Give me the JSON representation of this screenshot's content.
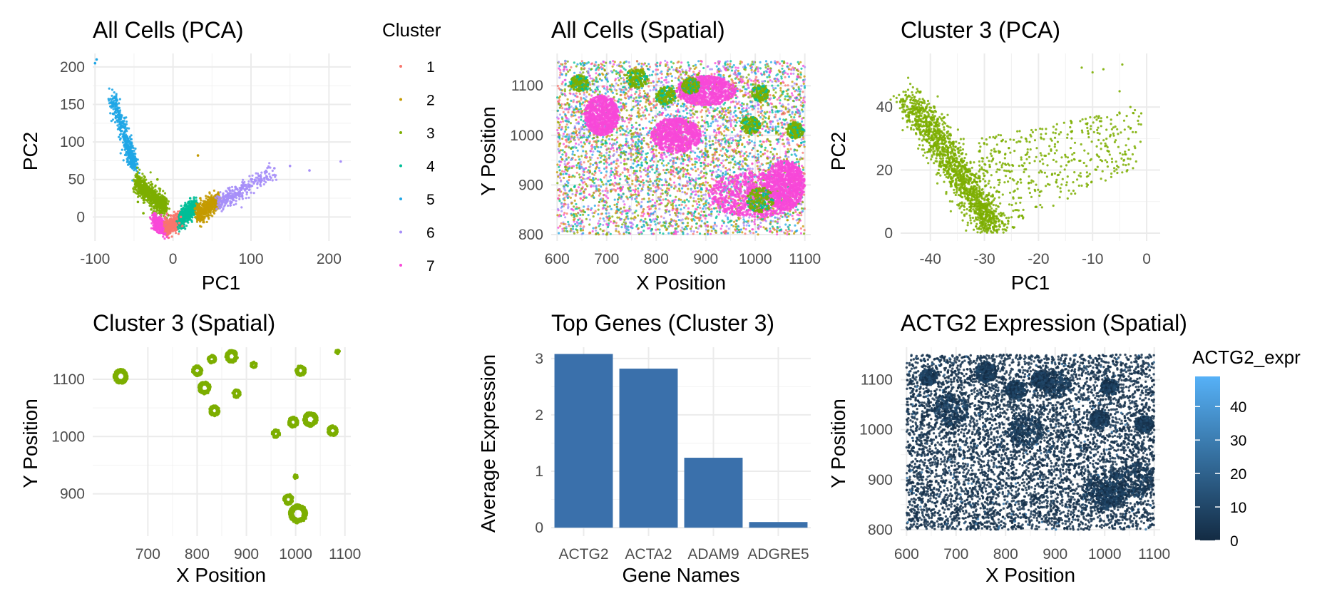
{
  "chart_data": [
    {
      "id": "p1",
      "type": "scatter",
      "title": "All Cells (PCA)",
      "xlabel": "PC1",
      "ylabel": "PC2",
      "xlim": [
        -103,
        228
      ],
      "ylim": [
        -32,
        218
      ],
      "xticks": [
        -100,
        0,
        100,
        200
      ],
      "yticks": [
        0,
        50,
        100,
        150,
        200
      ],
      "grid": true,
      "legend": {
        "title": "Cluster",
        "position": "right",
        "entries": [
          {
            "label": "1",
            "color": "#F8766D"
          },
          {
            "label": "2",
            "color": "#C49A00"
          },
          {
            "label": "3",
            "color": "#7CAE00"
          },
          {
            "label": "4",
            "color": "#00BE97"
          },
          {
            "label": "5",
            "color": "#1FA6E6"
          },
          {
            "label": "6",
            "color": "#A68EF8"
          },
          {
            "label": "7",
            "color": "#F848D8"
          }
        ]
      },
      "series": [
        {
          "name": "1",
          "color": "#F8766D",
          "points": [
            [
              -8,
              -5
            ],
            [
              0,
              -10
            ],
            [
              5,
              -2
            ],
            [
              -3,
              2
            ],
            [
              8,
              -8
            ],
            [
              12,
              -12
            ],
            [
              -5,
              -15
            ],
            [
              3,
              -18
            ],
            [
              10,
              0
            ],
            [
              -10,
              0
            ]
          ]
        },
        {
          "name": "2",
          "color": "#C49A00",
          "points": [
            [
              30,
              5
            ],
            [
              40,
              10
            ],
            [
              45,
              15
            ],
            [
              50,
              20
            ],
            [
              55,
              22
            ],
            [
              35,
              25
            ],
            [
              32,
              82
            ],
            [
              42,
              20
            ],
            [
              38,
              0
            ],
            [
              48,
              8
            ]
          ]
        },
        {
          "name": "3",
          "color": "#7CAE00",
          "points": [
            [
              -45,
              20
            ],
            [
              -40,
              30
            ],
            [
              -35,
              40
            ],
            [
              -30,
              25
            ],
            [
              -42,
              45
            ],
            [
              -28,
              10
            ],
            [
              -38,
              5
            ],
            [
              -32,
              35
            ],
            [
              -20,
              50
            ],
            [
              -25,
              30
            ]
          ]
        },
        {
          "name": "4",
          "color": "#00BE97",
          "points": [
            [
              10,
              5
            ],
            [
              15,
              15
            ],
            [
              20,
              20
            ],
            [
              18,
              0
            ],
            [
              25,
              10
            ],
            [
              22,
              25
            ],
            [
              12,
              -5
            ],
            [
              28,
              15
            ]
          ]
        },
        {
          "name": "5",
          "color": "#1FA6E6",
          "points": [
            [
              -98,
              210
            ],
            [
              -100,
              205
            ],
            [
              -75,
              160
            ],
            [
              -70,
              140
            ],
            [
              -65,
              120
            ],
            [
              -60,
              100
            ],
            [
              -55,
              85
            ],
            [
              -50,
              70
            ],
            [
              -58,
              90
            ],
            [
              -68,
              130
            ],
            [
              -72,
              150
            ]
          ]
        },
        {
          "name": "6",
          "color": "#A68EF8",
          "points": [
            [
              70,
              30
            ],
            [
              80,
              40
            ],
            [
              90,
              45
            ],
            [
              100,
              50
            ],
            [
              110,
              55
            ],
            [
              120,
              60
            ],
            [
              130,
              65
            ],
            [
              150,
              68
            ],
            [
              175,
              62
            ],
            [
              215,
              74
            ],
            [
              95,
              38
            ],
            [
              85,
              32
            ]
          ]
        },
        {
          "name": "7",
          "color": "#F848D8",
          "points": [
            [
              -20,
              -20
            ],
            [
              -15,
              -18
            ],
            [
              -25,
              -15
            ],
            [
              -10,
              -22
            ],
            [
              -18,
              -5
            ],
            [
              -22,
              -10
            ]
          ]
        }
      ]
    },
    {
      "id": "p2",
      "type": "scatter",
      "title": "All Cells (Spatial)",
      "xlabel": "X Position",
      "ylabel": "Y Position",
      "xlim": [
        588,
        1112
      ],
      "ylim": [
        787,
        1165
      ],
      "xticks": [
        600,
        700,
        800,
        900,
        1000,
        1100
      ],
      "yticks": [
        800,
        900,
        1000,
        1100
      ],
      "grid": true,
      "regions": {
        "x_range": [
          600,
          1100
        ],
        "y_range": [
          800,
          1150
        ],
        "colors": [
          "#F8766D",
          "#C49A00",
          "#7CAE00",
          "#00BE97",
          "#1FA6E6",
          "#A68EF8",
          "#F848D8"
        ],
        "cluster3_blobs": [
          [
            645,
            1105,
            18
          ],
          [
            760,
            1115,
            22
          ],
          [
            820,
            1080,
            20
          ],
          [
            870,
            1100,
            18
          ],
          [
            990,
            1020,
            20
          ],
          [
            1010,
            1085,
            18
          ],
          [
            1080,
            1010,
            18
          ],
          [
            1010,
            870,
            28
          ]
        ],
        "cluster7_regions": [
          [
            1000,
            880,
            95,
            45
          ],
          [
            840,
            1000,
            50,
            35
          ],
          [
            900,
            1090,
            60,
            30
          ],
          [
            690,
            1040,
            35,
            40
          ],
          [
            1060,
            900,
            40,
            50
          ]
        ]
      }
    },
    {
      "id": "p3",
      "type": "scatter",
      "title": "Cluster 3 (PCA)",
      "xlabel": "PC1",
      "ylabel": "PC2",
      "xlim": [
        -45.5,
        2.5
      ],
      "ylim": [
        -2.5,
        57
      ],
      "xticks": [
        -40,
        -30,
        -20,
        -10,
        0
      ],
      "yticks": [
        0,
        20,
        40
      ],
      "grid": true,
      "color": "#7CAE00",
      "dense_band": {
        "x_from": [
          -44,
          -28
        ],
        "y_from": [
          43,
          1
        ]
      },
      "sparse_area": {
        "x": [
          -30,
          0
        ],
        "y": [
          0,
          54
        ]
      }
    },
    {
      "id": "p4",
      "type": "scatter",
      "title": "Cluster 3 (Spatial)",
      "xlabel": "X Position",
      "ylabel": "Y Position",
      "xlim": [
        588,
        1112
      ],
      "ylim": [
        826,
        1156
      ],
      "xticks": [
        700,
        800,
        900,
        1000,
        1100
      ],
      "yticks": [
        900,
        1000,
        1100
      ],
      "grid": true,
      "color": "#7CAE00",
      "clusters": [
        [
          645,
          1105,
          14
        ],
        [
          800,
          1115,
          10
        ],
        [
          815,
          1085,
          12
        ],
        [
          835,
          1045,
          10
        ],
        [
          830,
          1135,
          8
        ],
        [
          870,
          1140,
          12
        ],
        [
          880,
          1075,
          8
        ],
        [
          915,
          1125,
          6
        ],
        [
          1010,
          1115,
          10
        ],
        [
          995,
          1025,
          10
        ],
        [
          1030,
          1030,
          14
        ],
        [
          960,
          1005,
          8
        ],
        [
          1075,
          1010,
          10
        ],
        [
          1005,
          865,
          18
        ],
        [
          985,
          890,
          10
        ],
        [
          1085,
          1148,
          4
        ],
        [
          1000,
          930,
          4
        ]
      ]
    },
    {
      "id": "p5",
      "type": "bar",
      "title": "Top Genes (Cluster 3)",
      "xlabel": "Gene Names",
      "ylabel": "Average Expression",
      "categories": [
        "ACTG2",
        "ACTA2",
        "ADAM9",
        "ADGRE5"
      ],
      "values": [
        3.08,
        2.82,
        1.24,
        0.1
      ],
      "ylim": [
        -0.15,
        3.2
      ],
      "yticks": [
        0,
        1,
        2,
        3
      ],
      "color": "#3A70AB",
      "grid": true
    },
    {
      "id": "p6",
      "type": "scatter",
      "title": "ACTG2 Expression (Spatial)",
      "xlabel": "X Position",
      "ylabel": "Y Position",
      "xlim": [
        588,
        1112
      ],
      "ylim": [
        787,
        1165
      ],
      "xticks": [
        600,
        700,
        800,
        900,
        1000,
        1100
      ],
      "yticks": [
        800,
        900,
        1000,
        1100
      ],
      "grid": true,
      "legend": {
        "title": "ACTG2_expr",
        "position": "right",
        "range": [
          0,
          49
        ],
        "ticks": [
          0,
          10,
          20,
          30,
          40
        ],
        "low_color": "#132B43",
        "high_color": "#56B1F7"
      }
    }
  ]
}
